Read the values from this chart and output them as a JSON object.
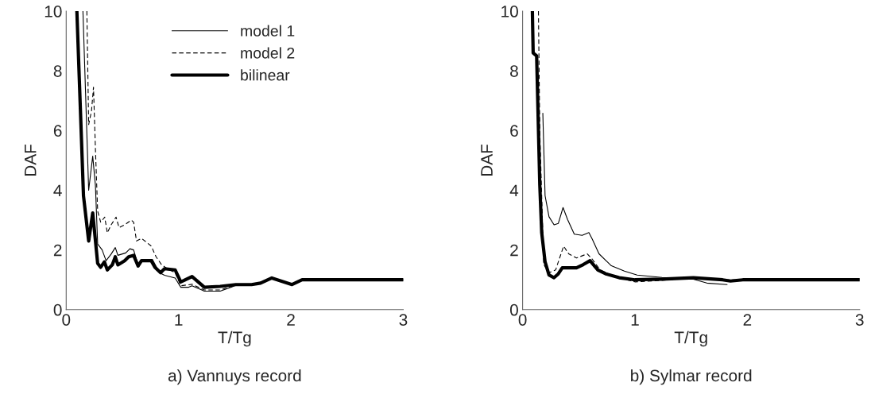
{
  "chart_data": [
    {
      "type": "line",
      "xlabel": "T/Tg",
      "ylabel": "DAF",
      "xlim": [
        0,
        3
      ],
      "ylim": [
        0,
        10
      ],
      "xticks": [
        0,
        1,
        2,
        3
      ],
      "yticks": [
        0,
        2,
        4,
        6,
        8,
        10
      ],
      "grid": false,
      "legend": "top right",
      "annotations": [
        "a) Vannuys record"
      ],
      "series": [
        {
          "name": "model 1",
          "color": "#000000",
          "line_style": "solid",
          "x": [
            0.149,
            0.2,
            0.236,
            0.26,
            0.28,
            0.32,
            0.355,
            0.4,
            0.437,
            0.46,
            0.53,
            0.567,
            0.6,
            0.64,
            0.686,
            0.768,
            0.83,
            0.875,
            0.97,
            1.02,
            1.09,
            1.12,
            1.23,
            1.37,
            1.47,
            1.51,
            1.65,
            1.73,
            1.83,
            2.01,
            2.1,
            3.0
          ],
          "values": [
            10,
            4.0,
            5.14,
            4.17,
            2.2,
            2.0,
            1.64,
            1.86,
            2.08,
            1.82,
            1.9,
            2.04,
            2.0,
            1.5,
            1.68,
            1.68,
            1.24,
            1.15,
            1.06,
            0.75,
            0.75,
            0.8,
            0.62,
            0.62,
            0.75,
            0.82,
            0.84,
            0.89,
            1.06,
            0.84,
            1.0,
            1.0
          ]
        },
        {
          "name": "model 2",
          "color": "#000000",
          "line_style": "dashed",
          "x": [
            0.184,
            0.2,
            0.225,
            0.243,
            0.26,
            0.28,
            0.307,
            0.343,
            0.366,
            0.4,
            0.444,
            0.47,
            0.52,
            0.58,
            0.6,
            0.626,
            0.67,
            0.757,
            0.8,
            0.85,
            0.9,
            0.97,
            1.02,
            1.12,
            1.23,
            1.37,
            1.51,
            1.65,
            1.73,
            1.83,
            2.01,
            2.1,
            3.0
          ],
          "values": [
            10,
            6.2,
            6.65,
            7.45,
            5.4,
            3.3,
            2.93,
            3.1,
            2.57,
            2.84,
            3.1,
            2.75,
            2.84,
            3.0,
            2.93,
            2.3,
            2.39,
            2.13,
            1.77,
            1.5,
            1.37,
            1.24,
            0.8,
            0.85,
            0.66,
            0.66,
            0.82,
            0.84,
            0.89,
            1.06,
            0.84,
            1.0,
            1.0
          ]
        },
        {
          "name": "bilinear",
          "color": "#000000",
          "line_style": "solid",
          "x": [
            0.095,
            0.154,
            0.2,
            0.236,
            0.28,
            0.307,
            0.34,
            0.366,
            0.41,
            0.437,
            0.46,
            0.52,
            0.556,
            0.6,
            0.64,
            0.67,
            0.757,
            0.79,
            0.84,
            0.875,
            0.97,
            1.02,
            1.05,
            1.12,
            1.23,
            1.37,
            1.51,
            1.65,
            1.73,
            1.83,
            2.01,
            2.1,
            3.0
          ],
          "values": [
            10,
            3.81,
            2.3,
            3.24,
            1.55,
            1.42,
            1.6,
            1.33,
            1.5,
            1.77,
            1.5,
            1.64,
            1.77,
            1.82,
            1.46,
            1.64,
            1.64,
            1.42,
            1.24,
            1.37,
            1.33,
            0.93,
            0.98,
            1.11,
            0.75,
            0.78,
            0.84,
            0.84,
            0.89,
            1.06,
            0.84,
            1.0,
            1.0
          ]
        }
      ]
    },
    {
      "type": "line",
      "xlabel": "T/Tg",
      "ylabel": "DAF",
      "xlim": [
        0,
        3
      ],
      "ylim": [
        0,
        10
      ],
      "xticks": [
        0,
        1,
        2,
        3
      ],
      "yticks": [
        0,
        2,
        4,
        6,
        8,
        10
      ],
      "grid": false,
      "legend": false,
      "annotations": [
        "b) Sylmar record"
      ],
      "series": [
        {
          "color": "#000000",
          "line_style": "solid",
          "x": [
            0.18,
            0.2,
            0.235,
            0.28,
            0.318,
            0.36,
            0.4,
            0.46,
            0.53,
            0.59,
            0.62,
            0.68,
            0.79,
            0.906,
            1.02,
            1.24,
            1.52,
            1.64,
            1.82
          ],
          "values": [
            6.58,
            3.82,
            3.11,
            2.84,
            2.89,
            3.42,
            3.02,
            2.53,
            2.49,
            2.58,
            2.36,
            1.87,
            1.47,
            1.29,
            1.16,
            1.08,
            1.02,
            0.89,
            0.84
          ]
        },
        {
          "color": "#000000",
          "line_style": "dashed",
          "x": [
            0.141,
            0.153,
            0.188,
            0.235,
            0.294,
            0.365,
            0.41,
            0.48,
            0.576,
            0.62,
            0.69,
            0.81,
            1.0,
            1.24,
            1.52,
            1.78,
            1.96,
            3.0
          ],
          "values": [
            10,
            5.96,
            1.51,
            1.24,
            1.33,
            2.13,
            1.87,
            1.73,
            1.87,
            1.69,
            1.33,
            1.11,
            0.93,
            0.98,
            1.07,
            1.0,
            1.0,
            1.0
          ]
        },
        {
          "color": "#000000",
          "line_style": "solid",
          "x": [
            0.087,
            0.094,
            0.125,
            0.153,
            0.17,
            0.2,
            0.235,
            0.28,
            0.318,
            0.353,
            0.48,
            0.54,
            0.6,
            0.67,
            0.74,
            0.86,
            1.0,
            1.24,
            1.52,
            1.78,
            1.85,
            1.96,
            3.0
          ],
          "values": [
            10,
            8.6,
            8.5,
            4.18,
            2.58,
            1.6,
            1.16,
            1.07,
            1.2,
            1.4,
            1.4,
            1.51,
            1.64,
            1.33,
            1.2,
            1.07,
            1.0,
            1.02,
            1.07,
            1.0,
            0.96,
            1.0,
            1.0
          ]
        }
      ]
    }
  ]
}
